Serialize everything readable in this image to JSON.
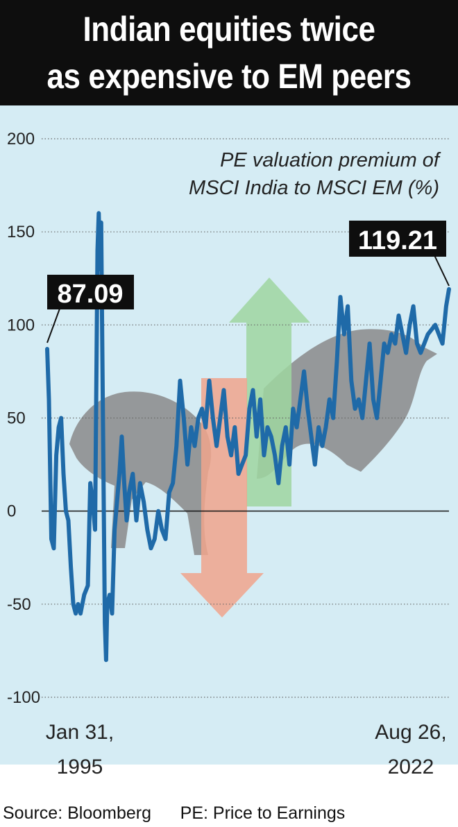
{
  "title": {
    "line1": "Indian equities twice",
    "line2": "as expensive to EM peers"
  },
  "source": "Source: Bloomberg      PE: Price to Earnings",
  "colors": {
    "line": "#1f6aa8",
    "background": "#d5ecf4",
    "title_bg": "#0e0e0e",
    "up_arrow": "#9fd6a0",
    "down_arrow": "#f0a48c",
    "bull_bear": "#8a8a8a"
  },
  "chart_data": {
    "type": "line",
    "subtitle_line1": "PE valuation premium of",
    "subtitle_line2": "MSCI India to MSCI EM (%)",
    "xlabel": "",
    "ylabel": "",
    "ylim": [
      -100,
      200
    ],
    "yticks": [
      200,
      150,
      100,
      50,
      0,
      -50,
      -100
    ],
    "x_start_label": [
      "Jan 31,",
      "1995"
    ],
    "x_end_label": [
      "Aug 26,",
      "2022"
    ],
    "x_range": [
      "1995-01-31",
      "2022-08-26"
    ],
    "annotations": [
      {
        "label": "87.09",
        "x": "1995-01-31",
        "y": 87.09
      },
      {
        "label": "119.21",
        "x": "2022-08-26",
        "y": 119.21
      }
    ],
    "grid": "dotted horizontal",
    "series": [
      {
        "values": [
          [
            "1995-01-31",
            87.09
          ],
          [
            "1995-03",
            60
          ],
          [
            "1995-05",
            -15
          ],
          [
            "1995-07",
            -20
          ],
          [
            "1995-09",
            30
          ],
          [
            "1995-11",
            45
          ],
          [
            "1996-01",
            50
          ],
          [
            "1996-03",
            20
          ],
          [
            "1996-05",
            0
          ],
          [
            "1996-07",
            -5
          ],
          [
            "1996-09",
            -30
          ],
          [
            "1996-11",
            -50
          ],
          [
            "1997-01",
            -55
          ],
          [
            "1997-03",
            -50
          ],
          [
            "1997-05",
            -55
          ],
          [
            "1997-08",
            -45
          ],
          [
            "1997-11",
            -40
          ],
          [
            "1998-01",
            15
          ],
          [
            "1998-03",
            5
          ],
          [
            "1998-05",
            -10
          ],
          [
            "1998-07",
            140
          ],
          [
            "1998-08",
            160
          ],
          [
            "1998-09",
            130
          ],
          [
            "1998-10",
            155
          ],
          [
            "1998-11",
            80
          ],
          [
            "1999-01",
            -60
          ],
          [
            "1999-02",
            -80
          ],
          [
            "1999-03",
            -50
          ],
          [
            "1999-05",
            -45
          ],
          [
            "1999-07",
            -55
          ],
          [
            "1999-09",
            -10
          ],
          [
            "1999-11",
            5
          ],
          [
            "2000-01",
            20
          ],
          [
            "2000-03",
            40
          ],
          [
            "2000-05",
            15
          ],
          [
            "2000-07",
            -5
          ],
          [
            "2000-09",
            10
          ],
          [
            "2000-12",
            20
          ],
          [
            "2001-03",
            -5
          ],
          [
            "2001-06",
            15
          ],
          [
            "2001-09",
            5
          ],
          [
            "2001-12",
            -10
          ],
          [
            "2002-03",
            -20
          ],
          [
            "2002-06",
            -15
          ],
          [
            "2002-09",
            0
          ],
          [
            "2002-12",
            -10
          ],
          [
            "2003-03",
            -15
          ],
          [
            "2003-06",
            10
          ],
          [
            "2003-09",
            15
          ],
          [
            "2003-12",
            35
          ],
          [
            "2004-03",
            70
          ],
          [
            "2004-06",
            50
          ],
          [
            "2004-09",
            25
          ],
          [
            "2004-12",
            45
          ],
          [
            "2005-03",
            35
          ],
          [
            "2005-06",
            50
          ],
          [
            "2005-09",
            55
          ],
          [
            "2005-12",
            45
          ],
          [
            "2006-03",
            70
          ],
          [
            "2006-06",
            50
          ],
          [
            "2006-09",
            35
          ],
          [
            "2006-12",
            50
          ],
          [
            "2007-03",
            65
          ],
          [
            "2007-06",
            40
          ],
          [
            "2007-09",
            30
          ],
          [
            "2007-12",
            45
          ],
          [
            "2008-03",
            20
          ],
          [
            "2008-06",
            25
          ],
          [
            "2008-09",
            30
          ],
          [
            "2008-12",
            55
          ],
          [
            "2009-03",
            65
          ],
          [
            "2009-06",
            40
          ],
          [
            "2009-09",
            60
          ],
          [
            "2009-12",
            30
          ],
          [
            "2010-03",
            45
          ],
          [
            "2010-06",
            40
          ],
          [
            "2010-09",
            30
          ],
          [
            "2010-12",
            15
          ],
          [
            "2011-03",
            35
          ],
          [
            "2011-06",
            45
          ],
          [
            "2011-09",
            25
          ],
          [
            "2011-12",
            55
          ],
          [
            "2012-03",
            45
          ],
          [
            "2012-06",
            60
          ],
          [
            "2012-09",
            75
          ],
          [
            "2012-12",
            55
          ],
          [
            "2013-03",
            40
          ],
          [
            "2013-06",
            25
          ],
          [
            "2013-09",
            45
          ],
          [
            "2013-12",
            35
          ],
          [
            "2014-03",
            45
          ],
          [
            "2014-06",
            60
          ],
          [
            "2014-09",
            50
          ],
          [
            "2014-12",
            80
          ],
          [
            "2015-03",
            115
          ],
          [
            "2015-06",
            95
          ],
          [
            "2015-09",
            110
          ],
          [
            "2015-12",
            70
          ],
          [
            "2016-03",
            55
          ],
          [
            "2016-06",
            60
          ],
          [
            "2016-09",
            50
          ],
          [
            "2016-12",
            70
          ],
          [
            "2017-03",
            90
          ],
          [
            "2017-06",
            60
          ],
          [
            "2017-09",
            50
          ],
          [
            "2017-12",
            70
          ],
          [
            "2018-03",
            90
          ],
          [
            "2018-06",
            85
          ],
          [
            "2018-09",
            95
          ],
          [
            "2018-12",
            90
          ],
          [
            "2019-03",
            105
          ],
          [
            "2019-06",
            95
          ],
          [
            "2019-09",
            85
          ],
          [
            "2019-12",
            100
          ],
          [
            "2020-03",
            110
          ],
          [
            "2020-06",
            90
          ],
          [
            "2020-09",
            85
          ],
          [
            "2021-03",
            95
          ],
          [
            "2021-09",
            100
          ],
          [
            "2022-03",
            90
          ],
          [
            "2022-06",
            110
          ],
          [
            "2022-08-26",
            119.21
          ]
        ]
      }
    ]
  }
}
